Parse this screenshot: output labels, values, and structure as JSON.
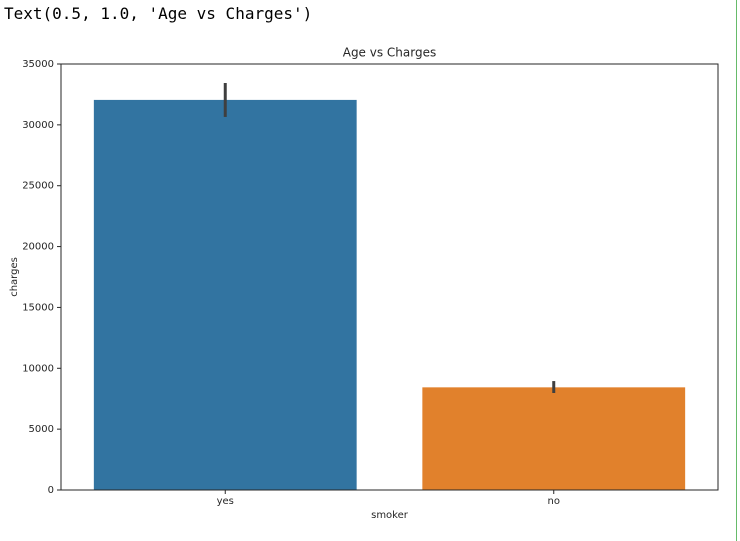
{
  "output_text": "Text(0.5, 1.0, 'Age vs Charges')",
  "chart_data": {
    "type": "bar",
    "title": "Age vs Charges",
    "x_label": "smoker",
    "y_label": "charges",
    "categories": [
      "yes",
      "no"
    ],
    "values": [
      32050,
      8434
    ],
    "ci_low": [
      30650,
      7970
    ],
    "ci_high": [
      33440,
      8950
    ],
    "colors": [
      "#3274a1",
      "#e1812c"
    ],
    "error_color": "#3f3f3f",
    "ylim": [
      0,
      35000
    ],
    "yticks": [
      0,
      5000,
      10000,
      15000,
      20000,
      25000,
      30000,
      35000
    ],
    "grid": false
  }
}
